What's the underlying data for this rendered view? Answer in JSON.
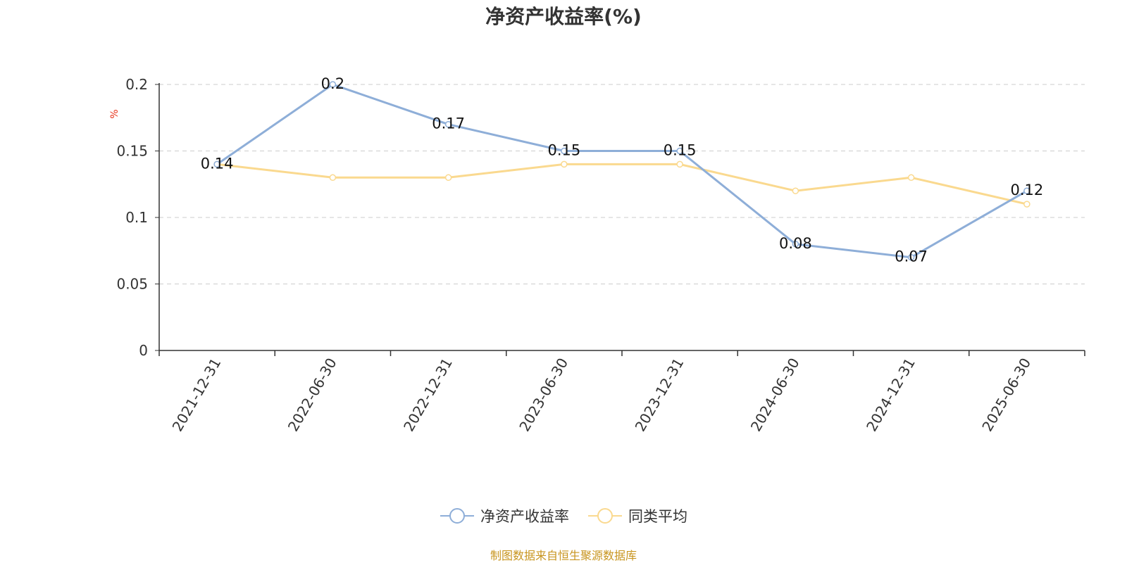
{
  "chart_data": {
    "type": "line",
    "title": "净资产收益率(%)",
    "ylabel": "%",
    "xlabel": "",
    "categories": [
      "2021-12-31",
      "2022-06-30",
      "2022-12-31",
      "2023-06-30",
      "2023-12-31",
      "2024-06-30",
      "2024-12-31",
      "2025-06-30"
    ],
    "ylim": [
      0,
      0.2
    ],
    "yticks": [
      "0",
      "0.05",
      "0.1",
      "0.15",
      "0.2"
    ],
    "grid": true,
    "legend_position": "bottom-center",
    "series": [
      {
        "name": "净资产收益率",
        "color": "#8eaed8",
        "values": [
          0.14,
          0.2,
          0.17,
          0.15,
          0.15,
          0.08,
          0.07,
          0.12
        ],
        "data_labels": [
          "0.14",
          "0.2",
          "0.17",
          "0.15",
          "0.15",
          "0.08",
          "0.07",
          "0.12"
        ]
      },
      {
        "name": "同类平均",
        "color": "#fad98f",
        "values": [
          0.14,
          0.13,
          0.13,
          0.14,
          0.14,
          0.12,
          0.13,
          0.11
        ]
      }
    ]
  },
  "colors": {
    "axis": "#333333",
    "grid": "#cccccc",
    "ylabel": "#e8341c",
    "source": "#c8951f"
  },
  "source_note": "制图数据来自恒生聚源数据库"
}
